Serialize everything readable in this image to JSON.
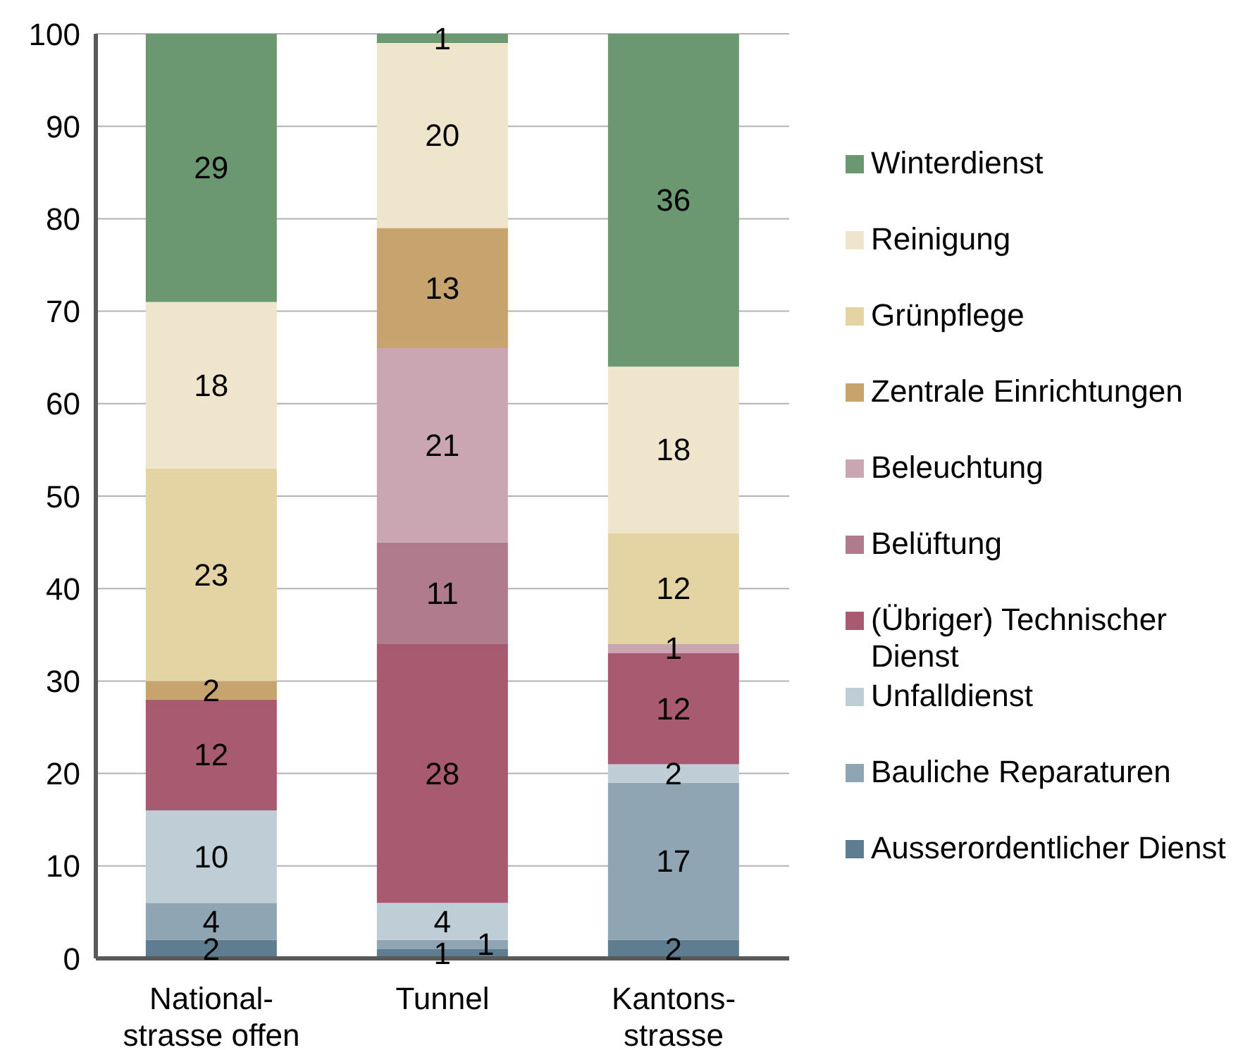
{
  "chart_data": {
    "type": "bar",
    "categories": [
      "National-\nstrasse offen",
      "Tunnel",
      "Kantons-\nstrasse"
    ],
    "stacked": true,
    "series": [
      {
        "name": "Ausserordentlicher Dienst",
        "color": "#5e7d90",
        "values": [
          2,
          1,
          2
        ]
      },
      {
        "name": "Bauliche Reparaturen",
        "color": "#8fa5b3",
        "values": [
          4,
          1,
          17
        ]
      },
      {
        "name": "Unfalldienst",
        "color": "#bfcdd6",
        "values": [
          10,
          4,
          2
        ]
      },
      {
        "name": "(Übriger) Technischer Dienst",
        "color": "#a85a71",
        "values": [
          12,
          28,
          12
        ]
      },
      {
        "name": "Belüftung",
        "color": "#b07b8c",
        "values": [
          null,
          11,
          null
        ]
      },
      {
        "name": "Beleuchtung",
        "color": "#c9a6b2",
        "values": [
          null,
          21,
          1
        ]
      },
      {
        "name": "Zentrale Einrichtungen",
        "color": "#c7a46d",
        "values": [
          2,
          13,
          null
        ]
      },
      {
        "name": "Grünpflege",
        "color": "#e4d3a3",
        "values": [
          23,
          null,
          12
        ]
      },
      {
        "name": "Reinigung",
        "color": "#efe4cc",
        "values": [
          18,
          20,
          18
        ]
      },
      {
        "name": "Winterdienst",
        "color": "#6b9870",
        "values": [
          29,
          1,
          36
        ]
      }
    ],
    "ylim": [
      0,
      100
    ],
    "yticks": [
      0,
      10,
      20,
      30,
      40,
      50,
      60,
      70,
      80,
      90,
      100
    ],
    "grid": "y",
    "legend": "right",
    "data_labels": true
  }
}
